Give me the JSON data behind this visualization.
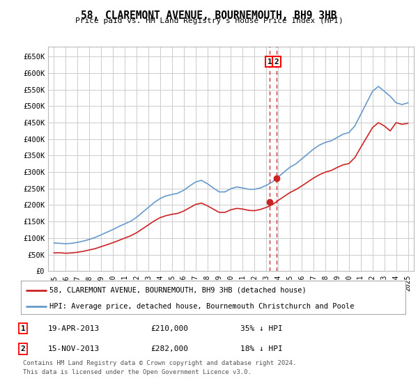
{
  "title": "58, CLAREMONT AVENUE, BOURNEMOUTH, BH9 3HB",
  "subtitle": "Price paid vs. HM Land Registry's House Price Index (HPI)",
  "ylim": [
    0,
    680000
  ],
  "xlim_start": 1994.5,
  "xlim_end": 2025.5,
  "yticks": [
    0,
    50000,
    100000,
    150000,
    200000,
    250000,
    300000,
    350000,
    400000,
    450000,
    500000,
    550000,
    600000,
    650000
  ],
  "ytick_labels": [
    "£0",
    "£50K",
    "£100K",
    "£150K",
    "£200K",
    "£250K",
    "£300K",
    "£350K",
    "£400K",
    "£450K",
    "£500K",
    "£550K",
    "£600K",
    "£650K"
  ],
  "xticks": [
    1995,
    1996,
    1997,
    1998,
    1999,
    2000,
    2001,
    2002,
    2003,
    2004,
    2005,
    2006,
    2007,
    2008,
    2009,
    2010,
    2011,
    2012,
    2013,
    2014,
    2015,
    2016,
    2017,
    2018,
    2019,
    2020,
    2021,
    2022,
    2023,
    2024,
    2025
  ],
  "hpi_color": "#6699cc",
  "price_color": "#cc2222",
  "vline_color": "#cc3333",
  "grid_color": "#cccccc",
  "sale1_x": 2013.3,
  "sale1_y": 210000,
  "sale2_x": 2013.88,
  "sale2_y": 282000,
  "sale1_date": "19-APR-2013",
  "sale1_price": "£210,000",
  "sale1_pct": "35% ↓ HPI",
  "sale2_date": "15-NOV-2013",
  "sale2_price": "£282,000",
  "sale2_pct": "18% ↓ HPI",
  "legend_line1": "58, CLAREMONT AVENUE, BOURNEMOUTH, BH9 3HB (detached house)",
  "legend_line2": "HPI: Average price, detached house, Bournemouth Christchurch and Poole",
  "footnote1": "Contains HM Land Registry data © Crown copyright and database right 2024.",
  "footnote2": "This data is licensed under the Open Government Licence v3.0.",
  "background_color": "#ffffff"
}
